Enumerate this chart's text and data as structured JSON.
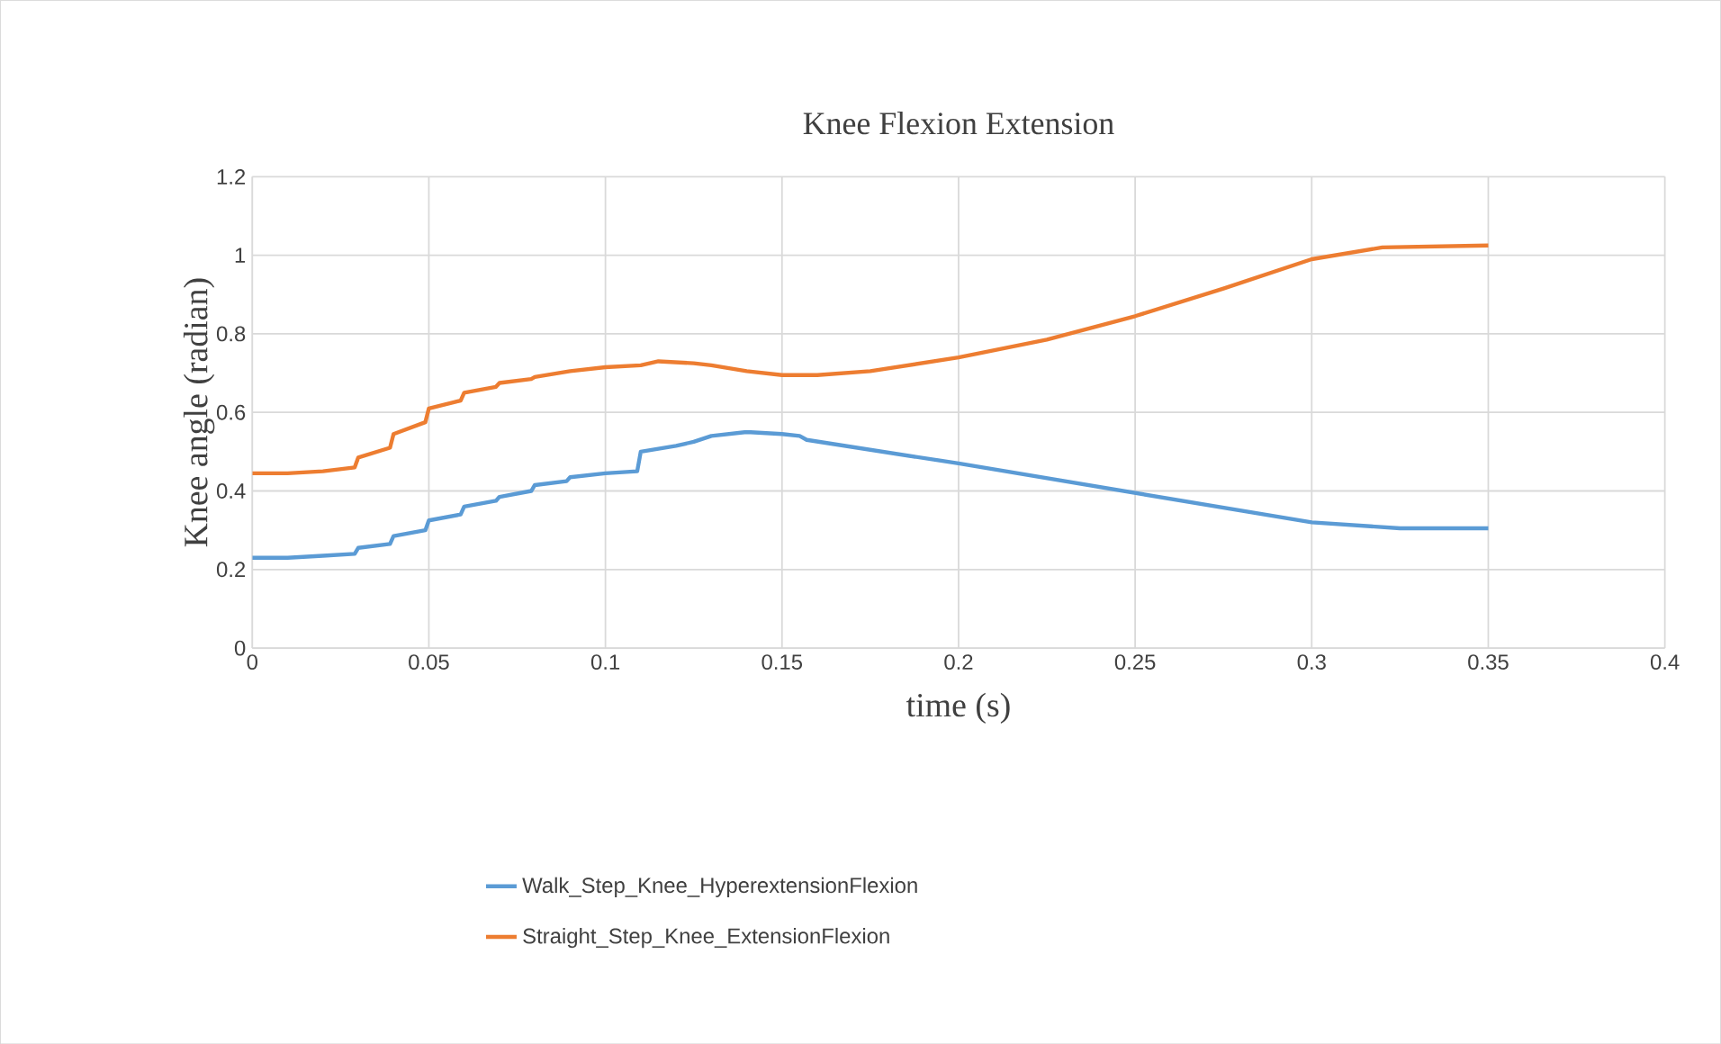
{
  "chart_data": {
    "type": "line",
    "title": "Knee Flexion Extension",
    "xlabel": "time (s)",
    "ylabel": "Knee angle (radian)",
    "xlim": [
      0,
      0.4
    ],
    "xticks": [
      0,
      0.05,
      0.1,
      0.15,
      0.2,
      0.25,
      0.3,
      0.35,
      0.4
    ],
    "ylim": [
      0,
      1.2
    ],
    "yticks": [
      0,
      0.2,
      0.4,
      0.6,
      0.8,
      1,
      1.2
    ],
    "grid": true,
    "legend": "bottom",
    "marker": "none",
    "line_style": "solid",
    "series": [
      {
        "name": "Walk_Step_Knee_HyperextensionFlexion",
        "color": "#5b9bd5",
        "x": [
          0,
          0.01,
          0.02,
          0.029,
          0.03,
          0.039,
          0.04,
          0.049,
          0.05,
          0.059,
          0.06,
          0.069,
          0.07,
          0.079,
          0.08,
          0.089,
          0.09,
          0.1,
          0.109,
          0.11,
          0.12,
          0.125,
          0.13,
          0.14,
          0.15,
          0.155,
          0.157,
          0.2,
          0.25,
          0.3,
          0.325,
          0.35
        ],
        "values": [
          0.23,
          0.23,
          0.235,
          0.24,
          0.255,
          0.265,
          0.285,
          0.3,
          0.325,
          0.34,
          0.36,
          0.375,
          0.385,
          0.4,
          0.415,
          0.425,
          0.435,
          0.445,
          0.45,
          0.5,
          0.515,
          0.525,
          0.54,
          0.55,
          0.545,
          0.54,
          0.53,
          0.47,
          0.395,
          0.32,
          0.305,
          0.305
        ]
      },
      {
        "name": "Straight_Step_Knee_ExtensionFlexion",
        "color": "#ed7d31",
        "x": [
          0,
          0.01,
          0.02,
          0.029,
          0.03,
          0.039,
          0.04,
          0.049,
          0.05,
          0.059,
          0.06,
          0.069,
          0.07,
          0.079,
          0.08,
          0.09,
          0.1,
          0.11,
          0.115,
          0.125,
          0.13,
          0.14,
          0.15,
          0.16,
          0.175,
          0.2,
          0.225,
          0.25,
          0.275,
          0.3,
          0.32,
          0.35
        ],
        "values": [
          0.445,
          0.445,
          0.45,
          0.46,
          0.485,
          0.51,
          0.545,
          0.575,
          0.61,
          0.63,
          0.65,
          0.665,
          0.675,
          0.685,
          0.69,
          0.705,
          0.715,
          0.72,
          0.73,
          0.725,
          0.72,
          0.705,
          0.695,
          0.695,
          0.705,
          0.74,
          0.785,
          0.845,
          0.915,
          0.99,
          1.02,
          1.025
        ]
      }
    ]
  }
}
